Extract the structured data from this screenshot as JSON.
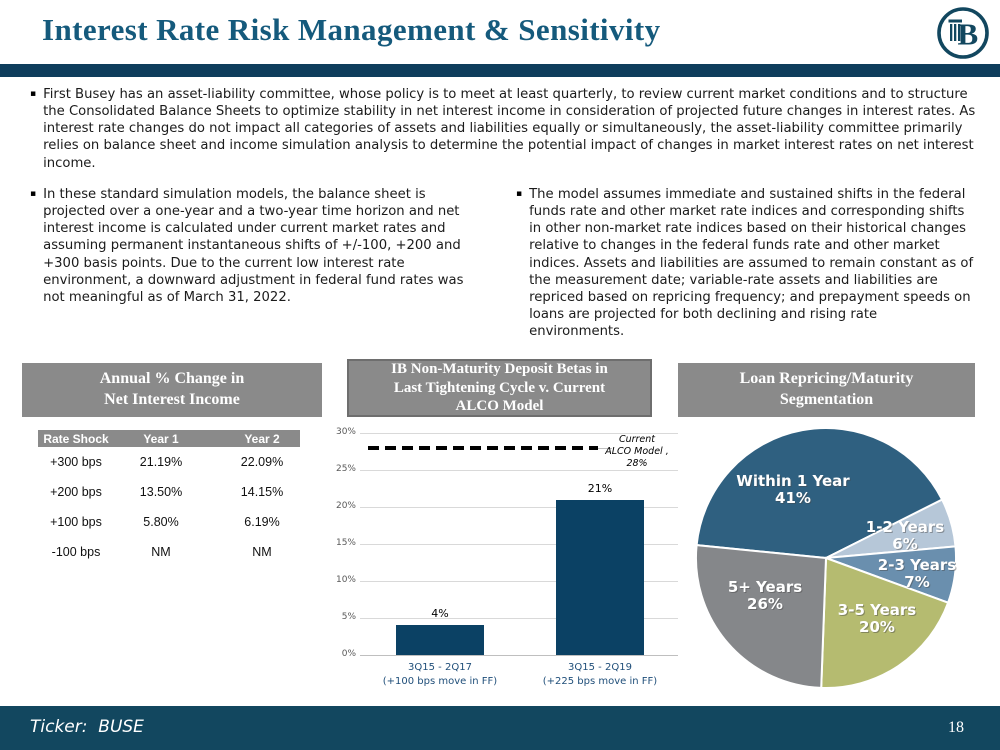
{
  "slide": {
    "title": "Interest Rate Risk Management & Sensitivity",
    "ticker_label": "Ticker:  BUSE",
    "page_number": "18"
  },
  "colors": {
    "title_teal": "#155a7c",
    "divider_navy": "#0e3d5c",
    "footer_teal": "#12475f",
    "panel_gray": "#8a8a8a",
    "bar_navy": "#0b4164"
  },
  "bullets": {
    "intro": "First Busey has an asset-liability committee, whose policy is to meet at least quarterly, to review current market conditions and to structure the Consolidated Balance Sheets to optimize stability in net interest income in consideration of projected future changes in interest rates. As interest rate changes do not impact all categories of assets and liabilities equally or simultaneously, the asset-liability committee primarily relies on balance sheet and income simulation analysis to determine the potential impact of changes in market interest rates on net interest income.",
    "left": "In these standard simulation models, the balance sheet is projected over a one-year and a two-year time horizon and net interest income is calculated under current market rates and assuming permanent instantaneous shifts of +/-100, +200 and +300 basis points. Due to the current low interest rate environment, a downward adjustment in federal fund rates was not meaningful as of March 31, 2022.",
    "right": "The model assumes immediate and sustained shifts in the federal funds rate and other market rate indices and corresponding shifts in other non-market rate indices based on their historical changes relative to changes in the federal funds rate and other market indices. Assets and liabilities are assumed to remain constant as of the measurement date; variable-rate assets and liabilities are repriced based on repricing frequency; and prepayment speeds on loans are projected for both declining and rising rate environments."
  },
  "panels": {
    "p1_title": "Annual % Change in\nNet Interest Income",
    "p2_title": "IB Non-Maturity Deposit Betas in\nLast Tightening Cycle v. Current\nALCO Model",
    "p3_title": "Loan Repricing/Maturity\nSegmentation"
  },
  "chart_data": [
    {
      "type": "table",
      "title": "Annual % Change in Net Interest Income",
      "columns": [
        "Rate Shock",
        "Year 1",
        "Year 2"
      ],
      "rows": [
        [
          "+300 bps",
          "21.19%",
          "22.09%"
        ],
        [
          "+200 bps",
          "13.50%",
          "14.15%"
        ],
        [
          "+100 bps",
          "5.80%",
          "6.19%"
        ],
        [
          "-100 bps",
          "NM",
          "NM"
        ]
      ]
    },
    {
      "type": "bar",
      "title": "IB Non-Maturity Deposit Betas in Last Tightening Cycle v. Current ALCO Model",
      "categories": [
        [
          "3Q15 - 2Q17",
          "(+100 bps move in FF)"
        ],
        [
          "3Q15 - 2Q19",
          "(+225 bps move in FF)"
        ]
      ],
      "values": [
        4,
        21
      ],
      "bar_labels": [
        "4%",
        "21%"
      ],
      "ylim": [
        0,
        30
      ],
      "ytick_step": 5,
      "ytick_suffix": "%",
      "grid": true,
      "bar_color": "#0b4164",
      "reference_line": {
        "value": 28,
        "label_lines": [
          "Current",
          "ALCO Model ,",
          "28%"
        ]
      }
    },
    {
      "type": "pie",
      "title": "Loan Repricing/Maturity Segmentation",
      "start_angle_deg": -84.3,
      "slices": [
        {
          "label": "Within 1 Year",
          "pct_label": "41%",
          "value": 41,
          "color": "#2f6080"
        },
        {
          "label": "1-2 Years",
          "pct_label": "6%",
          "value": 6,
          "color": "#b6c7d8"
        },
        {
          "label": "2-3  Years",
          "pct_label": "7%",
          "value": 7,
          "color": "#6a8fae"
        },
        {
          "label": "3-5 Years",
          "pct_label": "20%",
          "value": 20,
          "color": "#b5bb70"
        },
        {
          "label": "5+ Years",
          "pct_label": "26%",
          "value": 26,
          "color": "#85878a"
        }
      ]
    }
  ]
}
